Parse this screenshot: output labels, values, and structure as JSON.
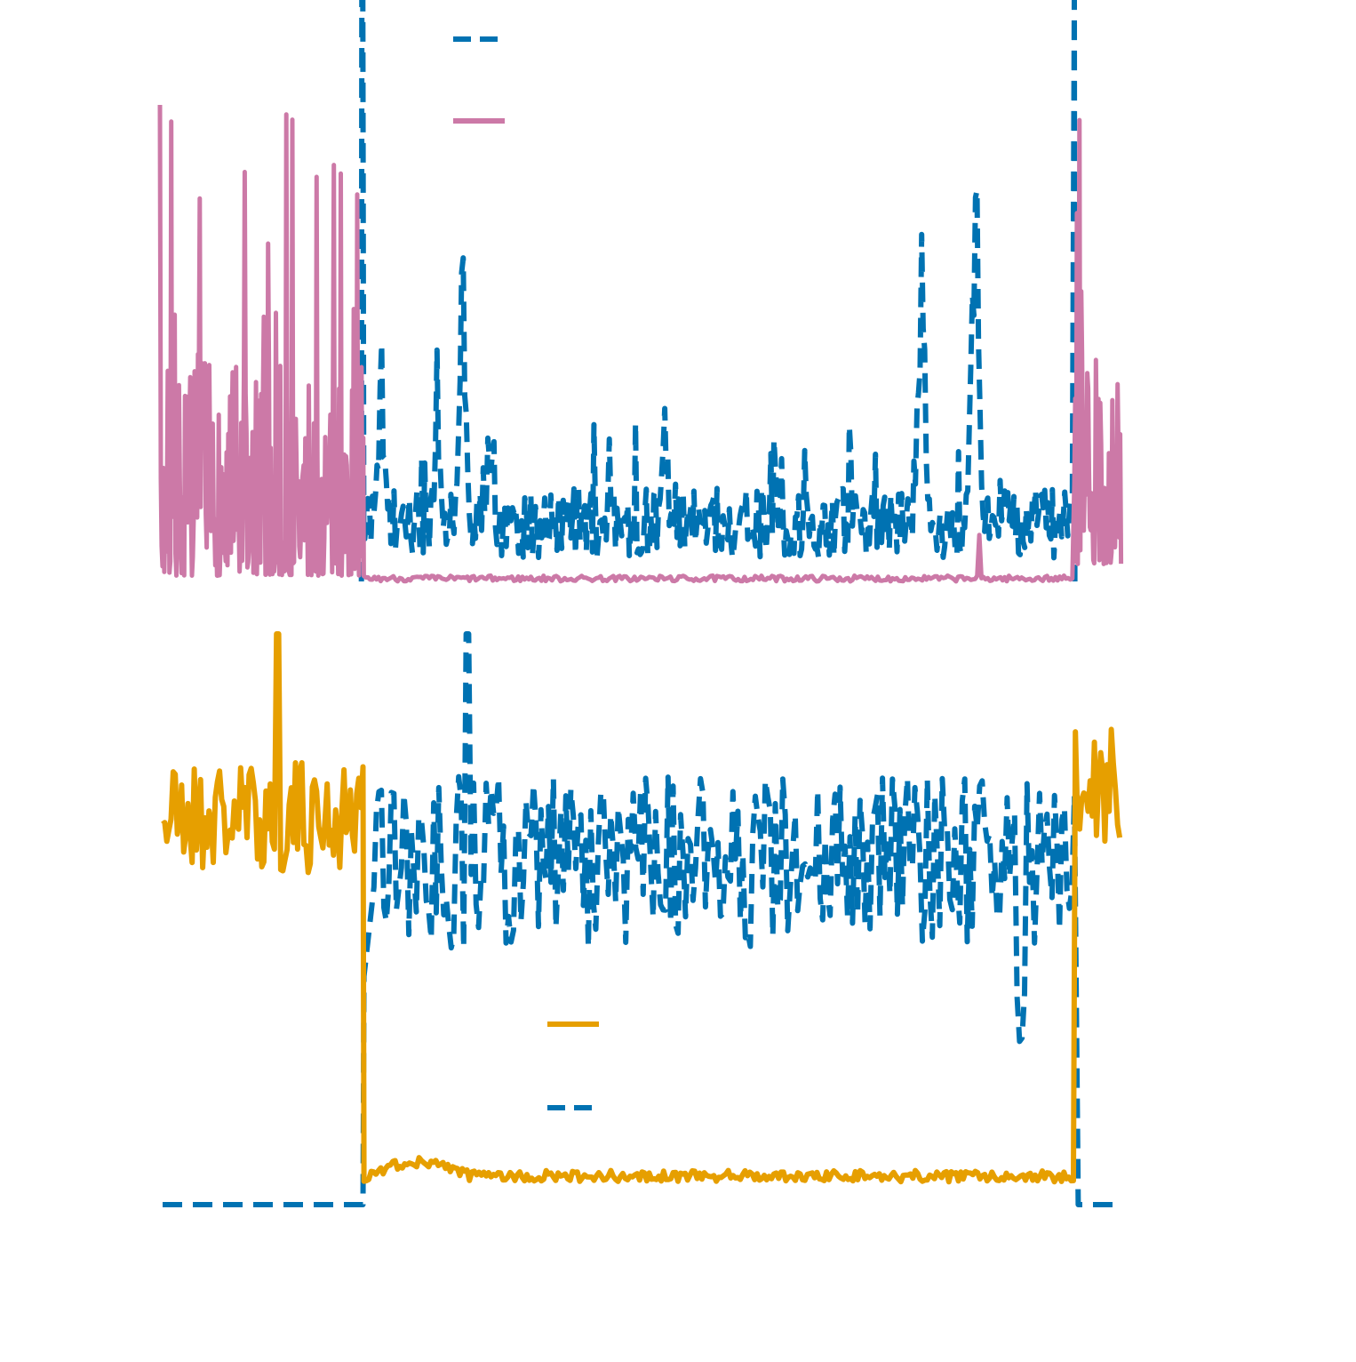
{
  "chart_data": [
    {
      "type": "line",
      "title": "",
      "xlabel": "",
      "ylabel": "",
      "grid": false,
      "legend": "top-left",
      "xlim": [
        0,
        1000
      ],
      "ylim": [
        0,
        100
      ],
      "colors": {
        "blue": "#0072b2",
        "pink": "#cc79a7"
      },
      "events": [
        {
          "x": 210,
          "value_before": 0,
          "value_after": 100
        },
        {
          "x": 951,
          "value_before": 100,
          "value_after": 0
        }
      ],
      "series": [
        {
          "style": "dashed",
          "color": "#0072b2",
          "x_start": 210,
          "x_end": 951,
          "value_range": [
            0,
            100
          ],
          "peaks": [
            {
              "x": 230,
              "y": 52
            },
            {
              "x": 288,
              "y": 46
            },
            {
              "x": 315,
              "y": 68
            },
            {
              "x": 343,
              "y": 40
            },
            {
              "x": 525,
              "y": 35
            },
            {
              "x": 640,
              "y": 25
            },
            {
              "x": 792,
              "y": 85
            },
            {
              "x": 845,
              "y": 63
            },
            {
              "x": 848,
              "y": 100
            }
          ]
        },
        {
          "style": "solid",
          "color": "#cc79a7",
          "x_start": 0,
          "x_end": 1000,
          "value_range": [
            0,
            100
          ],
          "segments": [
            {
              "x_from": 0,
              "x_to": 212,
              "level": "high",
              "typical": [
                1,
                38
              ],
              "peak": 83
            },
            {
              "x_from": 212,
              "x_to": 951,
              "level": "low",
              "typical": [
                0,
                1
              ]
            },
            {
              "x_from": 951,
              "x_to": 1000,
              "level": "high",
              "typical": [
                3,
                40
              ],
              "peak": 100
            }
          ]
        }
      ]
    },
    {
      "type": "line",
      "title": "",
      "xlabel": "",
      "ylabel": "",
      "grid": false,
      "legend": "center",
      "xlim": [
        0,
        1000
      ],
      "ylim": [
        0,
        100
      ],
      "colors": {
        "orange": "#e69f00",
        "blue": "#0072b2"
      },
      "series": [
        {
          "style": "solid",
          "color": "#e69f00",
          "x_start": 0,
          "x_end": 1000,
          "segments": [
            {
              "x_from": 0,
              "x_to": 209,
              "typical": [
                58,
                78
              ],
              "peak": 100
            },
            {
              "x_from": 210,
              "x_to": 952,
              "typical": [
                3,
                7
              ],
              "peak": 8
            },
            {
              "x_from": 952,
              "x_to": 1000,
              "typical": [
                58,
                85
              ],
              "peak": 85
            }
          ]
        },
        {
          "style": "dashed",
          "color": "#0072b2",
          "x_start": 0,
          "x_end": 993,
          "segments": [
            {
              "x_from": 0,
              "x_to": 209,
              "level": 0
            },
            {
              "x_from": 210,
              "x_to": 952,
              "typical": [
                45,
                75
              ],
              "peak": 100,
              "trough": 25
            },
            {
              "x_from": 955,
              "x_to": 993,
              "level": 0
            }
          ]
        }
      ]
    }
  ]
}
